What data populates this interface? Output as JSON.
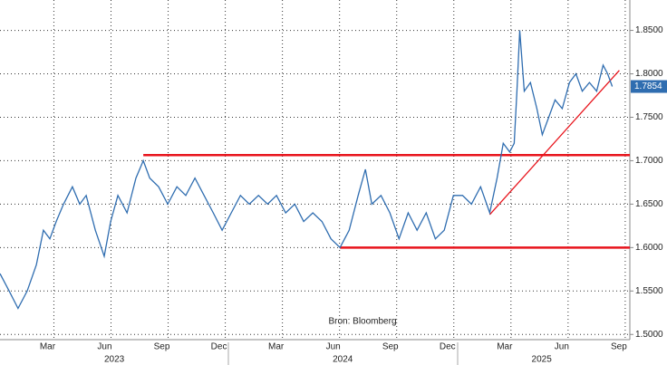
{
  "chart_data": {
    "type": "line",
    "source": "Bron: Bloomberg",
    "series": [
      {
        "color": "#2f6db0",
        "x": [
          2023.0,
          2023.04,
          2023.079,
          2023.119,
          2023.159,
          2023.19,
          2023.218,
          2023.246,
          2023.278,
          2023.317,
          2023.349,
          2023.377,
          2023.417,
          2023.456,
          2023.484,
          2023.516,
          2023.556,
          2023.595,
          2023.627,
          2023.655,
          2023.694,
          2023.734,
          2023.774,
          2023.813,
          2023.853,
          2023.893,
          2023.933,
          2023.972,
          2024.012,
          2024.052,
          2024.091,
          2024.131,
          2024.171,
          2024.21,
          2024.25,
          2024.29,
          2024.329,
          2024.369,
          2024.409,
          2024.448,
          2024.488,
          2024.528,
          2024.567,
          2024.599,
          2024.627,
          2024.667,
          2024.706,
          2024.746,
          2024.786,
          2024.825,
          2024.865,
          2024.905,
          2024.944,
          2024.984,
          2025.024,
          2025.063,
          2025.103,
          2025.143,
          2025.175,
          2025.202,
          2025.23,
          2025.25,
          2025.262,
          2025.274,
          2025.294,
          2025.321,
          2025.349,
          2025.373,
          2025.401,
          2025.429,
          2025.46,
          2025.492,
          2025.52,
          2025.548,
          2025.579,
          2025.611,
          2025.639,
          2025.659,
          2025.679
        ],
        "values": [
          1.57,
          1.55,
          1.53,
          1.55,
          1.58,
          1.62,
          1.61,
          1.63,
          1.65,
          1.67,
          1.65,
          1.66,
          1.62,
          1.59,
          1.63,
          1.66,
          1.64,
          1.68,
          1.7,
          1.68,
          1.67,
          1.65,
          1.67,
          1.66,
          1.68,
          1.66,
          1.64,
          1.62,
          1.64,
          1.66,
          1.65,
          1.66,
          1.65,
          1.66,
          1.64,
          1.65,
          1.63,
          1.64,
          1.63,
          1.61,
          1.6,
          1.62,
          1.66,
          1.69,
          1.65,
          1.66,
          1.64,
          1.61,
          1.64,
          1.62,
          1.64,
          1.61,
          1.62,
          1.66,
          1.66,
          1.65,
          1.67,
          1.64,
          1.68,
          1.72,
          1.71,
          1.72,
          1.78,
          1.85,
          1.78,
          1.79,
          1.76,
          1.73,
          1.75,
          1.77,
          1.76,
          1.79,
          1.8,
          1.78,
          1.79,
          1.78,
          1.81,
          1.8,
          1.7854
        ]
      }
    ],
    "last_value": 1.7854,
    "reference_lines": [
      {
        "color": "#e8141c",
        "x": [
          2023.627,
          2025.756
        ],
        "y": [
          1.7064,
          1.7064
        ]
      },
      {
        "color": "#e8141c",
        "x": [
          2024.488,
          2025.756
        ],
        "y": [
          1.6,
          1.6
        ]
      },
      {
        "color": "#e8141c",
        "x": [
          2025.143,
          2025.71
        ],
        "y": [
          1.638,
          1.804
        ]
      }
    ],
    "xlim": [
      2023.0,
      2025.756
    ],
    "ylim": [
      1.494,
      1.885
    ],
    "xticks": [
      {
        "value": 2023.208,
        "label": "Mar"
      },
      {
        "value": 2023.458,
        "label": "Jun"
      },
      {
        "value": 2023.708,
        "label": "Sep"
      },
      {
        "value": 2023.958,
        "label": "Dec"
      },
      {
        "value": 2024.208,
        "label": "Mar"
      },
      {
        "value": 2024.458,
        "label": "Jun"
      },
      {
        "value": 2024.708,
        "label": "Sep"
      },
      {
        "value": 2024.958,
        "label": "Dec"
      },
      {
        "value": 2025.208,
        "label": "Mar"
      },
      {
        "value": 2025.458,
        "label": "Jun"
      },
      {
        "value": 2025.708,
        "label": "Sep"
      }
    ],
    "year_ticks": [
      {
        "value": 2023.5,
        "label": "2023"
      },
      {
        "value": 2024.5,
        "label": "2024"
      },
      {
        "value": 2025.37,
        "label": "2025"
      }
    ],
    "yticks": [
      {
        "value": 1.5,
        "label": "1.5000"
      },
      {
        "value": 1.55,
        "label": "1.5500"
      },
      {
        "value": 1.6,
        "label": "1.6000"
      },
      {
        "value": 1.65,
        "label": "1.6500"
      },
      {
        "value": 1.7,
        "label": "1.7000"
      },
      {
        "value": 1.75,
        "label": "1.7500"
      },
      {
        "value": 1.8,
        "label": "1.8000"
      },
      {
        "value": 1.85,
        "label": "1.8500"
      }
    ],
    "grid": true
  }
}
